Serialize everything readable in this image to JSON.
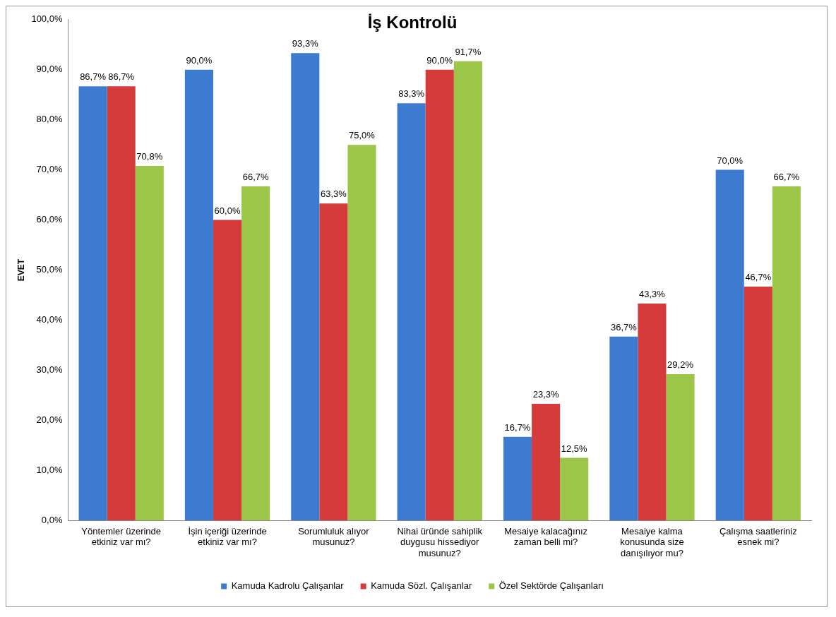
{
  "chart_data": {
    "type": "bar",
    "title": "İş Kontrolü",
    "ylabel": "EVET",
    "categories": [
      "Yöntemler üzerinde etkiniz var mı?",
      "İşin içeriği üzerinde etkiniz var mı?",
      "Sorumluluk alıyor musunuz?",
      "Nihai üründe sahiplik duygusu hissediyor musunuz?",
      "Mesaiye kalacağınız zaman belli mi?",
      "Mesaiye kalma konusunda size danışılıyor mu?",
      "Çalışma saatleriniz esnek mi?"
    ],
    "series": [
      {
        "name": "Kamuda Kadrolu Çalışanlar",
        "color": "#3d7bd1",
        "values": [
          86.7,
          90.0,
          93.3,
          83.3,
          16.7,
          36.7,
          70.0
        ],
        "value_labels": [
          "86,7%",
          "90,0%",
          "93,3%",
          "83,3%",
          "16,7%",
          "36,7%",
          "70,0%"
        ]
      },
      {
        "name": "Kamuda Sözl. Çalışanlar",
        "color": "#d63b3b",
        "values": [
          86.7,
          60.0,
          63.3,
          90.0,
          23.3,
          43.3,
          46.7
        ],
        "value_labels": [
          "86,7%",
          "60,0%",
          "63,3%",
          "90,0%",
          "23,3%",
          "43,3%",
          "46,7%"
        ]
      },
      {
        "name": "Özel Sektörde Çalışanları",
        "color": "#9cc648",
        "values": [
          70.8,
          66.7,
          75.0,
          91.7,
          12.5,
          29.2,
          66.7
        ],
        "value_labels": [
          "70,8%",
          "66,7%",
          "75,0%",
          "91,7%",
          "12,5%",
          "29,2%",
          "66,7%"
        ]
      }
    ],
    "ylim": [
      0,
      100
    ],
    "yticks": [
      {
        "value": 0,
        "label": "0,0%"
      },
      {
        "value": 10,
        "label": "10,0%"
      },
      {
        "value": 20,
        "label": "20,0%"
      },
      {
        "value": 30,
        "label": "30,0%"
      },
      {
        "value": 40,
        "label": "40,0%"
      },
      {
        "value": 50,
        "label": "50,0%"
      },
      {
        "value": 60,
        "label": "60,0%"
      },
      {
        "value": 70,
        "label": "70,0%"
      },
      {
        "value": 80,
        "label": "80,0%"
      },
      {
        "value": 90,
        "label": "90,0%"
      },
      {
        "value": 100,
        "label": "100,0%"
      }
    ],
    "grid": false,
    "legend": "bottom"
  }
}
